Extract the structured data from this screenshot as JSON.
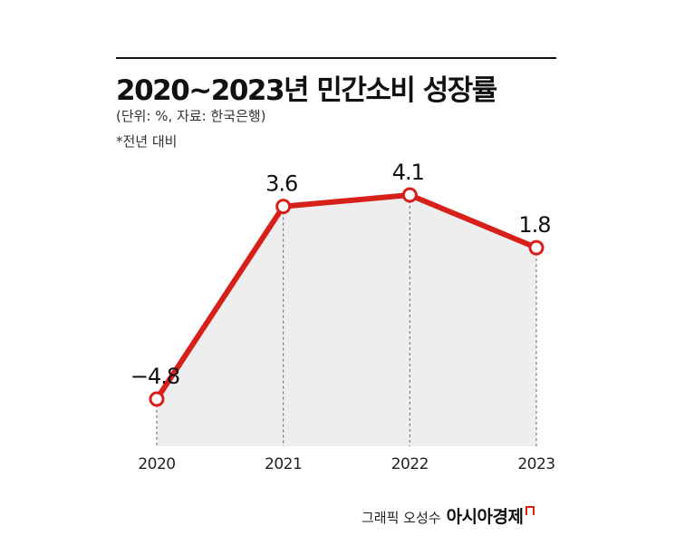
{
  "chart_data": {
    "type": "line",
    "title": "2020~2023년 민간소비 성장률",
    "subtitle": "(단위: %, 자료: 한국은행)",
    "note": "*전년 대비",
    "categories": [
      "2020",
      "2021",
      "2022",
      "2023"
    ],
    "values": [
      -4.8,
      3.6,
      4.1,
      1.8
    ],
    "value_labels": [
      "−4.8",
      "3.6",
      "4.1",
      "1.8"
    ],
    "grid": false,
    "legend": "none"
  },
  "colors": {
    "line": "#d7201a",
    "area": "#eeeeee",
    "marker_fill": "#ffffff"
  },
  "credit": {
    "text": "그래픽 오성수",
    "brand": "아시아경제"
  }
}
